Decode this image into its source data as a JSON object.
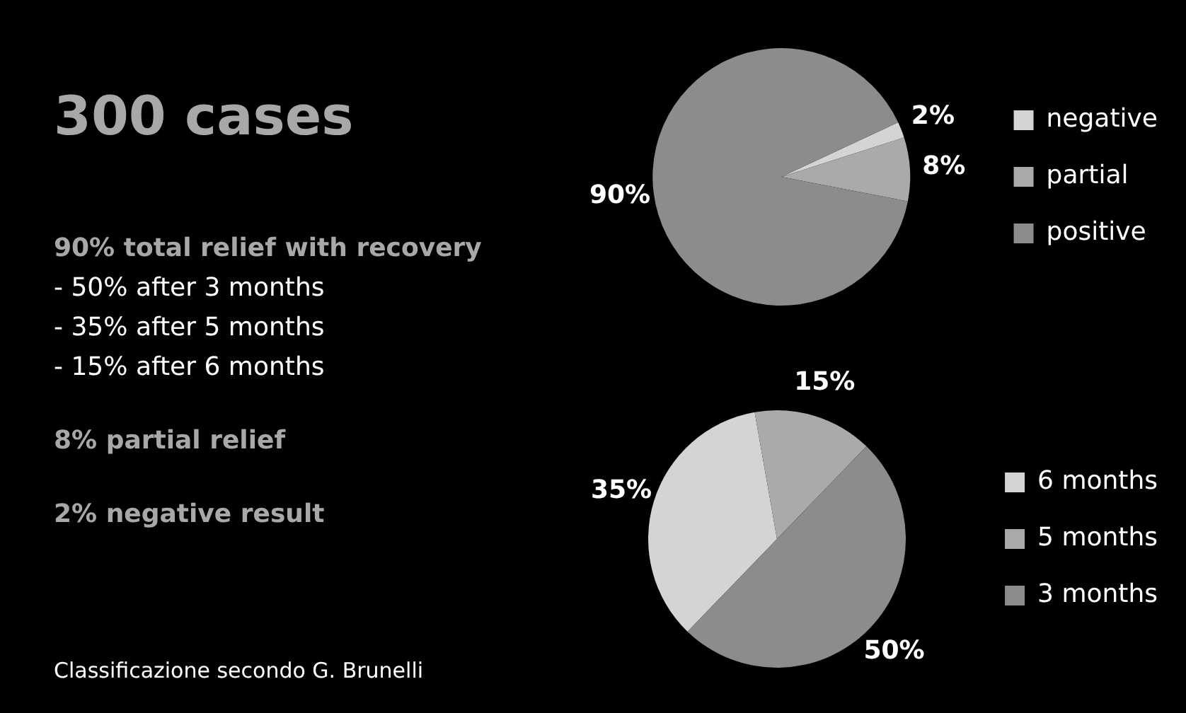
{
  "chart_data": [
    {
      "type": "other",
      "title": "300 cases",
      "annotations": [
        "90% total relief with recovery",
        "- 50% after 3 months",
        "- 35% after 5 months",
        "- 15% after 6 months",
        "8% partial relief",
        "2% negative result",
        "Classificazione secondo G. Brunelli"
      ]
    },
    {
      "type": "pie",
      "categories": [
        "negative",
        "partial",
        "positive"
      ],
      "values": [
        2,
        8,
        90
      ],
      "value_labels": [
        "2%",
        "8%",
        "90%"
      ],
      "colors": [
        "#d4d4d4",
        "#aaaaaa",
        "#8c8c8c"
      ],
      "legend": "right"
    },
    {
      "type": "pie",
      "categories": [
        "6 months",
        "5 months",
        "3 months"
      ],
      "values": [
        35,
        15,
        50
      ],
      "value_labels": [
        "35%",
        "15%",
        "50%"
      ],
      "colors": [
        "#d4d4d4",
        "#aaaaaa",
        "#8c8c8c"
      ],
      "legend": "right"
    }
  ]
}
